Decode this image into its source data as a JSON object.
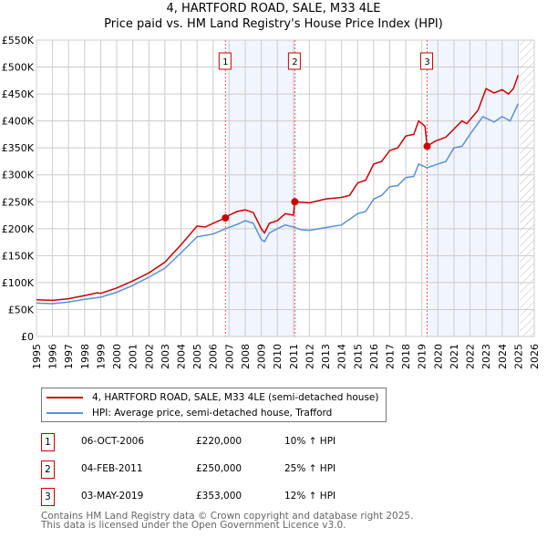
{
  "chart_data": {
    "type": "line",
    "title": "4, HARTFORD ROAD, SALE, M33 4LE",
    "subtitle": "Price paid vs. HM Land Registry's House Price Index (HPI)",
    "xlim": [
      1995,
      2026
    ],
    "ylim": [
      0,
      550000
    ],
    "x_ticks": [
      "1995",
      "1996",
      "1997",
      "1998",
      "1999",
      "2000",
      "2001",
      "2002",
      "2003",
      "2004",
      "2005",
      "2006",
      "2007",
      "2008",
      "2009",
      "2010",
      "2011",
      "2012",
      "2013",
      "2014",
      "2015",
      "2016",
      "2017",
      "2018",
      "2019",
      "2020",
      "2021",
      "2022",
      "2023",
      "2024",
      "2025",
      "2026"
    ],
    "y_ticks": [
      "£0",
      "£50K",
      "£100K",
      "£150K",
      "£200K",
      "£250K",
      "£300K",
      "£350K",
      "£400K",
      "£450K",
      "£500K",
      "£550K"
    ],
    "grid": true,
    "series": [
      {
        "name": "4, HARTFORD ROAD, SALE, M33 4LE (semi-detached house)",
        "color": "#cc0000",
        "x": [
          1995,
          1996,
          1997,
          1998,
          1998.8,
          1999,
          2000,
          2001,
          2002,
          2003,
          2004,
          2005,
          2005.5,
          2006,
          2006.77,
          2007,
          2007.5,
          2008,
          2008.5,
          2009,
          2009.2,
          2009.5,
          2010,
          2010.5,
          2011.0,
          2011.1,
          2012,
          2013,
          2014,
          2014.5,
          2015,
          2015.5,
          2016,
          2016.5,
          2017,
          2017.5,
          2018,
          2018.5,
          2018.8,
          2019.2,
          2019.33,
          2019.8,
          2020.5,
          2021,
          2021.5,
          2021.8,
          2022.5,
          2023,
          2023.5,
          2024,
          2024.4,
          2024.7,
          2025.0
        ],
        "y": [
          68000,
          67000,
          70000,
          76000,
          81000,
          80000,
          90000,
          103000,
          118000,
          138000,
          170000,
          205000,
          203000,
          210000,
          220000,
          225000,
          232000,
          235000,
          230000,
          200000,
          192000,
          210000,
          215000,
          228000,
          225000,
          250000,
          248000,
          255000,
          258000,
          262000,
          285000,
          290000,
          320000,
          325000,
          345000,
          350000,
          372000,
          375000,
          400000,
          390000,
          353000,
          362000,
          370000,
          385000,
          400000,
          395000,
          420000,
          460000,
          452000,
          458000,
          450000,
          460000,
          485000
        ]
      },
      {
        "name": "HPI: Average price, semi-detached house, Trafford",
        "color": "#5b8fd6",
        "x": [
          1995,
          1996,
          1997,
          1998,
          1999,
          2000,
          2001,
          2002,
          2003,
          2004,
          2005,
          2006,
          2006.77,
          2007.5,
          2008,
          2008.5,
          2009,
          2009.2,
          2009.5,
          2010,
          2010.5,
          2011,
          2011.5,
          2012,
          2013,
          2014,
          2015,
          2015.5,
          2016,
          2016.5,
          2017,
          2017.5,
          2018,
          2018.5,
          2018.8,
          2019.33,
          2020,
          2020.5,
          2021,
          2021.5,
          2022,
          2022.8,
          2023.5,
          2024,
          2024.5,
          2025
        ],
        "y": [
          62000,
          61000,
          64000,
          69000,
          73000,
          82000,
          95000,
          110000,
          127000,
          155000,
          185000,
          190000,
          200000,
          208000,
          215000,
          210000,
          180000,
          176000,
          192000,
          200000,
          207000,
          203000,
          198000,
          197000,
          202000,
          207000,
          228000,
          232000,
          255000,
          262000,
          278000,
          280000,
          295000,
          297000,
          320000,
          313000,
          320000,
          325000,
          350000,
          353000,
          375000,
          408000,
          398000,
          408000,
          400000,
          432000
        ]
      }
    ],
    "sales": [
      {
        "label": "1",
        "x": 2006.77,
        "y": 220000
      },
      {
        "label": "2",
        "x": 2011.09,
        "y": 250000
      },
      {
        "label": "3",
        "x": 2019.33,
        "y": 353000
      }
    ],
    "shaded_ranges": [
      [
        2006.9,
        2011.1
      ],
      [
        2019.4,
        2025.0
      ]
    ],
    "hatched_range": [
      2025.1,
      2026
    ]
  },
  "legend": {
    "property": "4, HARTFORD ROAD, SALE, M33 4LE (semi-detached house)",
    "hpi": "HPI: Average price, semi-detached house, Trafford"
  },
  "transactions": [
    {
      "num": "1",
      "date": "06-OCT-2006",
      "price": "£220,000",
      "hpi": "10% ↑ HPI"
    },
    {
      "num": "2",
      "date": "04-FEB-2011",
      "price": "£250,000",
      "hpi": "25% ↑ HPI"
    },
    {
      "num": "3",
      "date": "03-MAY-2019",
      "price": "£353,000",
      "hpi": "12% ↑ HPI"
    }
  ],
  "footer": {
    "line1": "Contains HM Land Registry data © Crown copyright and database right 2025.",
    "line2": "This data is licensed under the Open Government Licence v3.0."
  }
}
